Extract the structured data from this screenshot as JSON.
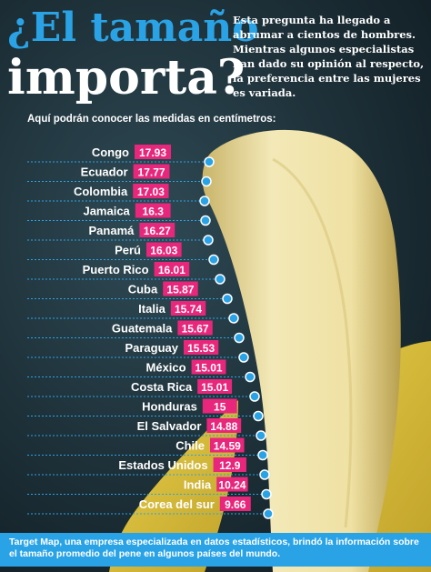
{
  "header": {
    "title_line1": "¿El tamaño",
    "title_line2": "importa?",
    "intro": "Esta pregunta ha llegado a abrumar a cientos de hombres. Mientras algunos especialistas han dado su opinión al respecto, la preferencia entre las mujeres es variada.",
    "subtitle": "Aquí podrán conocer las medidas en centímetros:"
  },
  "chart_data": {
    "type": "bar",
    "title": "",
    "categories": [
      "Congo",
      "Ecuador",
      "Colombia",
      "Jamaica",
      "Panamá",
      "Perú",
      "Puerto Rico",
      "Cuba",
      "Italia",
      "Guatemala",
      "Paraguay",
      "México",
      "Costa Rica",
      "Honduras",
      "El Salvador",
      "Chile",
      "Estados Unidos",
      "India",
      "Corea del sur"
    ],
    "values": [
      17.93,
      17.77,
      17.03,
      16.3,
      16.27,
      16.03,
      16.01,
      15.87,
      15.74,
      15.67,
      15.53,
      15.01,
      15.01,
      15,
      14.88,
      14.59,
      12.9,
      10.24,
      9.66
    ],
    "value_labels": [
      "17.93",
      "17.77",
      "17.03",
      "16.3",
      "16.27",
      "16.03",
      "16.01",
      "15.87",
      "15.74",
      "15.67",
      "15.53",
      "15.01",
      "15.01",
      "15",
      "14.88",
      "14.59",
      "12.9",
      "10.24",
      "9.66"
    ],
    "unit": "centímetros",
    "colors": {
      "label_bg": "#e8267b",
      "label_text": "#ffffff",
      "dot": "#2aa3e6",
      "guide": "#2aa3e6"
    }
  },
  "footer": {
    "text": "Target Map, una empresa especializada en datos estadísticos, brindó la información sobre el tamaño promedio del pene en algunos países del mundo."
  }
}
